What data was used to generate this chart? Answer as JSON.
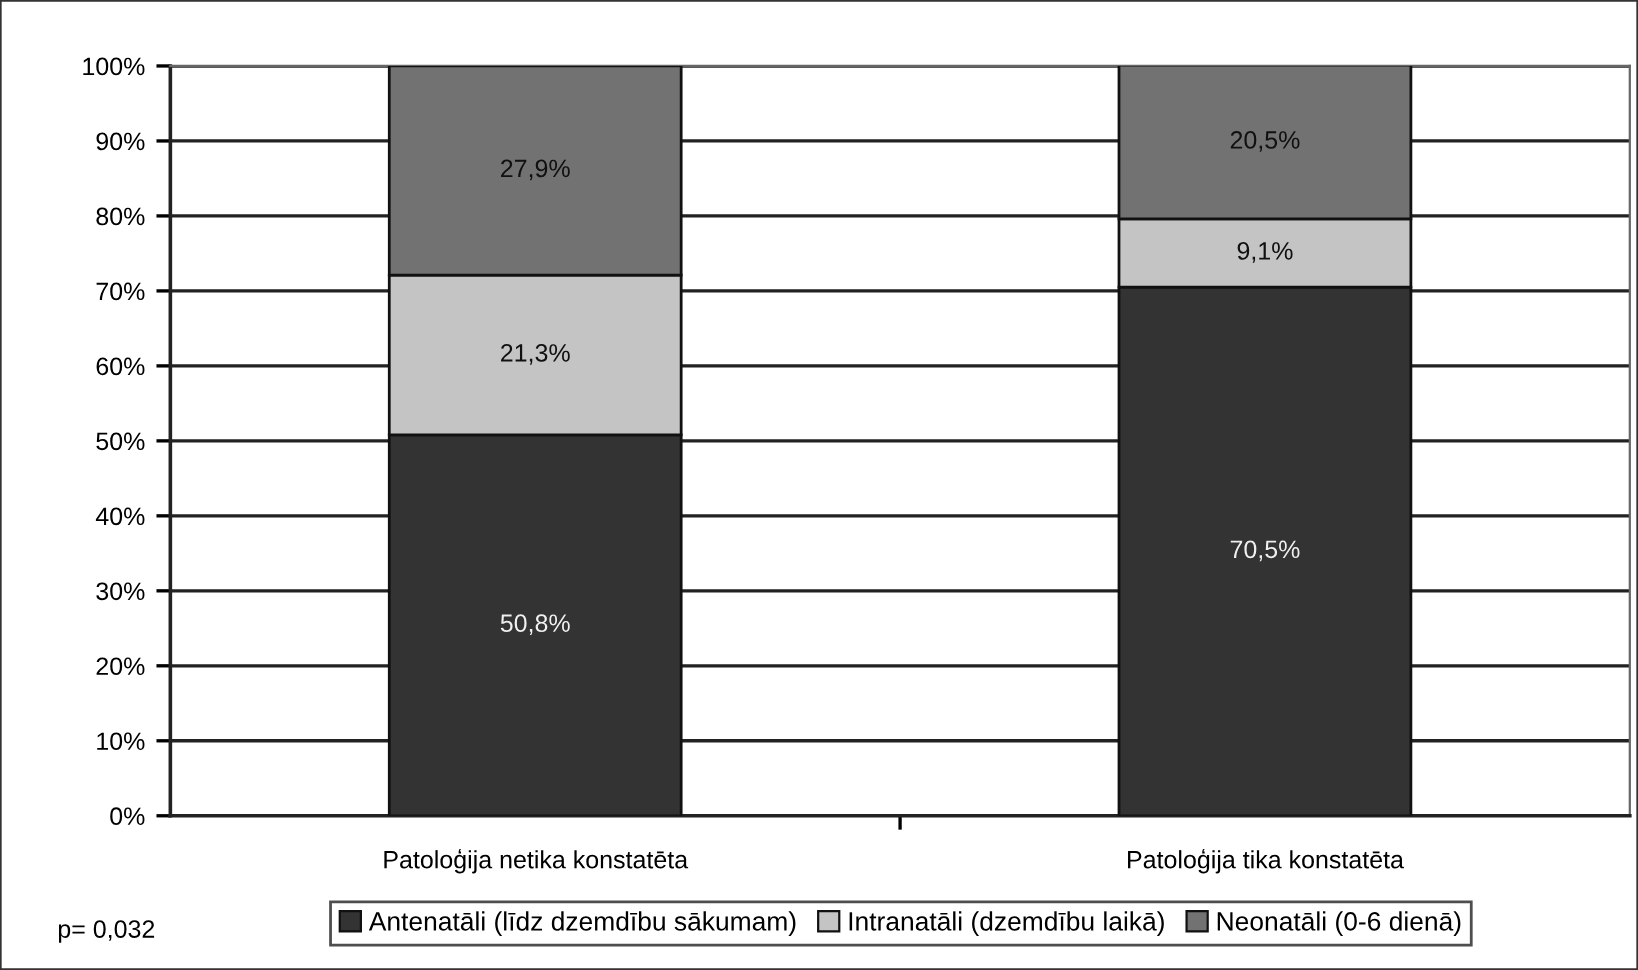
{
  "chart_data": {
    "type": "bar",
    "stacked": true,
    "categories": [
      "Patoloģija netika konstatēta",
      "Patoloģija tika konstatēta"
    ],
    "series": [
      {
        "name": "Antenatāli (līdz dzemdību sākumam)",
        "color": "#333333",
        "values": [
          50.8,
          70.5
        ],
        "value_labels": [
          "50,8%",
          "70,5%"
        ]
      },
      {
        "name": "Intranatāli (dzemdību laikā)",
        "color": "#c4c4c4",
        "values": [
          21.3,
          9.1
        ],
        "value_labels": [
          "21,3%",
          "9,1%"
        ]
      },
      {
        "name": "Neonatāli (0-6 dienā)",
        "color": "#727272",
        "values": [
          27.9,
          20.5
        ],
        "value_labels": [
          "27,9%",
          "20,5%"
        ]
      }
    ],
    "ylim": [
      0,
      100
    ],
    "yticks": [
      {
        "value": 0,
        "label": "0%"
      },
      {
        "value": 10,
        "label": "10%"
      },
      {
        "value": 20,
        "label": "20%"
      },
      {
        "value": 30,
        "label": "30%"
      },
      {
        "value": 40,
        "label": "40%"
      },
      {
        "value": 50,
        "label": "50%"
      },
      {
        "value": 60,
        "label": "60%"
      },
      {
        "value": 70,
        "label": "70%"
      },
      {
        "value": 80,
        "label": "80%"
      },
      {
        "value": 90,
        "label": "90%"
      },
      {
        "value": 100,
        "label": "100%"
      }
    ],
    "grid": "y",
    "legend": "bottom",
    "annotations": [
      "p= 0,032"
    ]
  }
}
